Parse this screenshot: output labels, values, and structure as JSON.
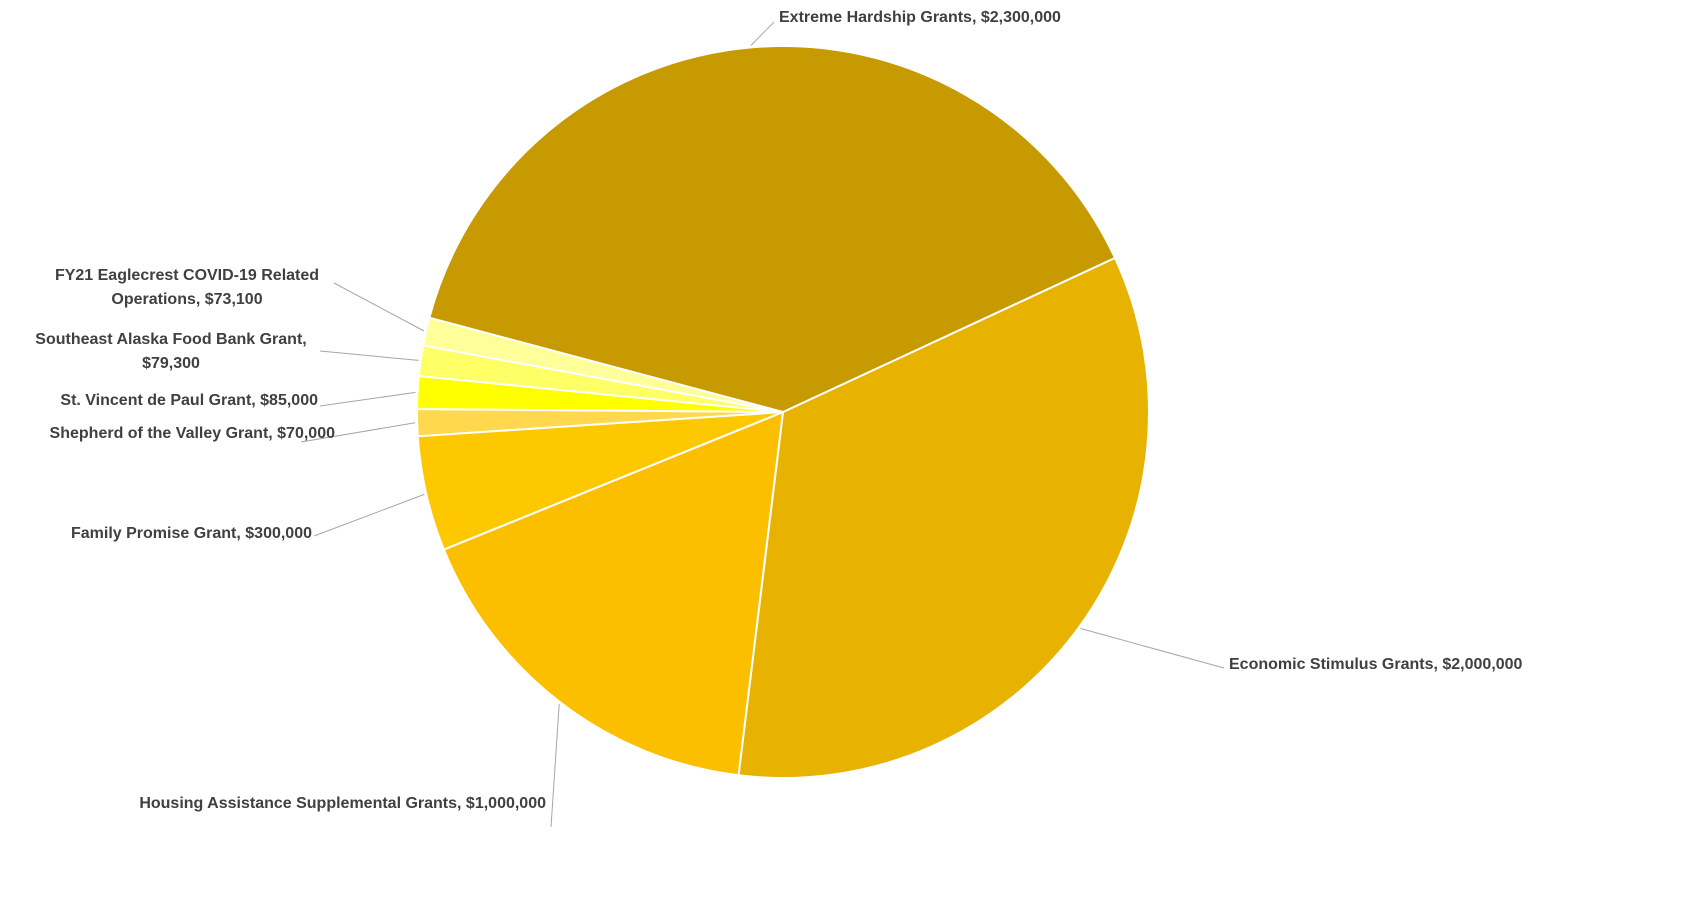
{
  "chart_data": {
    "type": "pie",
    "title": "",
    "start_angle_deg": 109.1,
    "direction": "clockwise",
    "slices": [
      {
        "label": "Economic Stimulus Grants",
        "value": 2000000,
        "value_label": "$2,000,000",
        "color": "#e8b200"
      },
      {
        "label": "Housing Assistance Supplemental Grants",
        "value": 1000000,
        "value_label": "$1,000,000",
        "color": "#fcbf00"
      },
      {
        "label": "Family Promise Grant",
        "value": 300000,
        "value_label": "$300,000",
        "color": "#fdc800"
      },
      {
        "label": "Shepherd of the Valley Grant",
        "value": 70000,
        "value_label": "$70,000",
        "color": "#ffd84d"
      },
      {
        "label": "St. Vincent de Paul Grant",
        "value": 85000,
        "value_label": "$85,000",
        "color": "#ffff00"
      },
      {
        "label": "Southeast Alaska Food Bank Grant",
        "value": 79300,
        "value_label": "$79,300",
        "color": "#ffff66"
      },
      {
        "label": "FY21 Eaglecrest COVID-19 Related Operations",
        "value": 73100,
        "value_label": "$73,100",
        "color": "#ffff99"
      },
      {
        "label": "Extreme Hardship Grants",
        "value": 2300000,
        "value_label": "$2,300,000",
        "color": "#c69a00"
      }
    ]
  }
}
